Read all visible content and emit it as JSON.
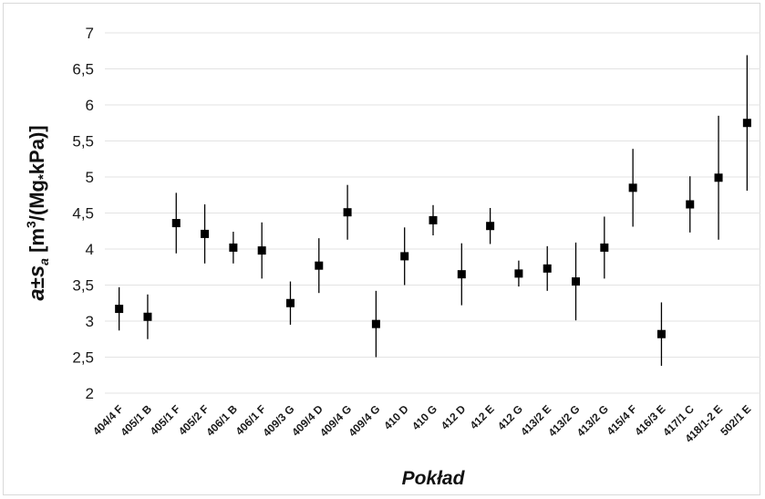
{
  "chart_data": {
    "type": "scatter",
    "error_bars": true,
    "title": "",
    "xlabel": "Pokład",
    "ylabel": {
      "var": "a",
      "pm": "±",
      "s": "s",
      "sub": "a",
      "unit_open": " [m",
      "sup3": "3",
      "unit_mid": "/(Mg",
      "dot": "*",
      "unit_close": "kPa)]"
    },
    "ylim": [
      2,
      7
    ],
    "yticks": [
      "2",
      "2,5",
      "3",
      "3,5",
      "4",
      "4,5",
      "5",
      "5,5",
      "6",
      "6,5",
      "7"
    ],
    "grid": "horizontal",
    "marker_color": "#000000",
    "categories": [
      "404/4 F",
      "405/1 B",
      "405/1 F",
      "405/2 F",
      "406/1 B",
      "406/1 F",
      "409/3 G",
      "409/4 D",
      "409/4 G",
      "409/4 G",
      "410 D",
      "410 G",
      "412 D",
      "412 E",
      "412 G",
      "413/2 E",
      "413/2 G",
      "413/2 G",
      "415/4 F",
      "416/3 E",
      "417/1 C",
      "418/1-2 E",
      "502/1 E"
    ],
    "values": [
      3.17,
      3.06,
      4.36,
      4.21,
      4.02,
      3.98,
      3.25,
      3.77,
      4.51,
      2.96,
      3.9,
      4.4,
      3.65,
      4.32,
      3.66,
      3.73,
      3.55,
      4.02,
      4.85,
      2.82,
      4.62,
      4.99,
      5.75
    ],
    "errors": [
      0.3,
      0.31,
      0.42,
      0.41,
      0.22,
      0.39,
      0.3,
      0.38,
      0.38,
      0.46,
      0.4,
      0.21,
      0.43,
      0.25,
      0.18,
      0.31,
      0.54,
      0.43,
      0.54,
      0.44,
      0.39,
      0.86,
      0.94
    ]
  }
}
